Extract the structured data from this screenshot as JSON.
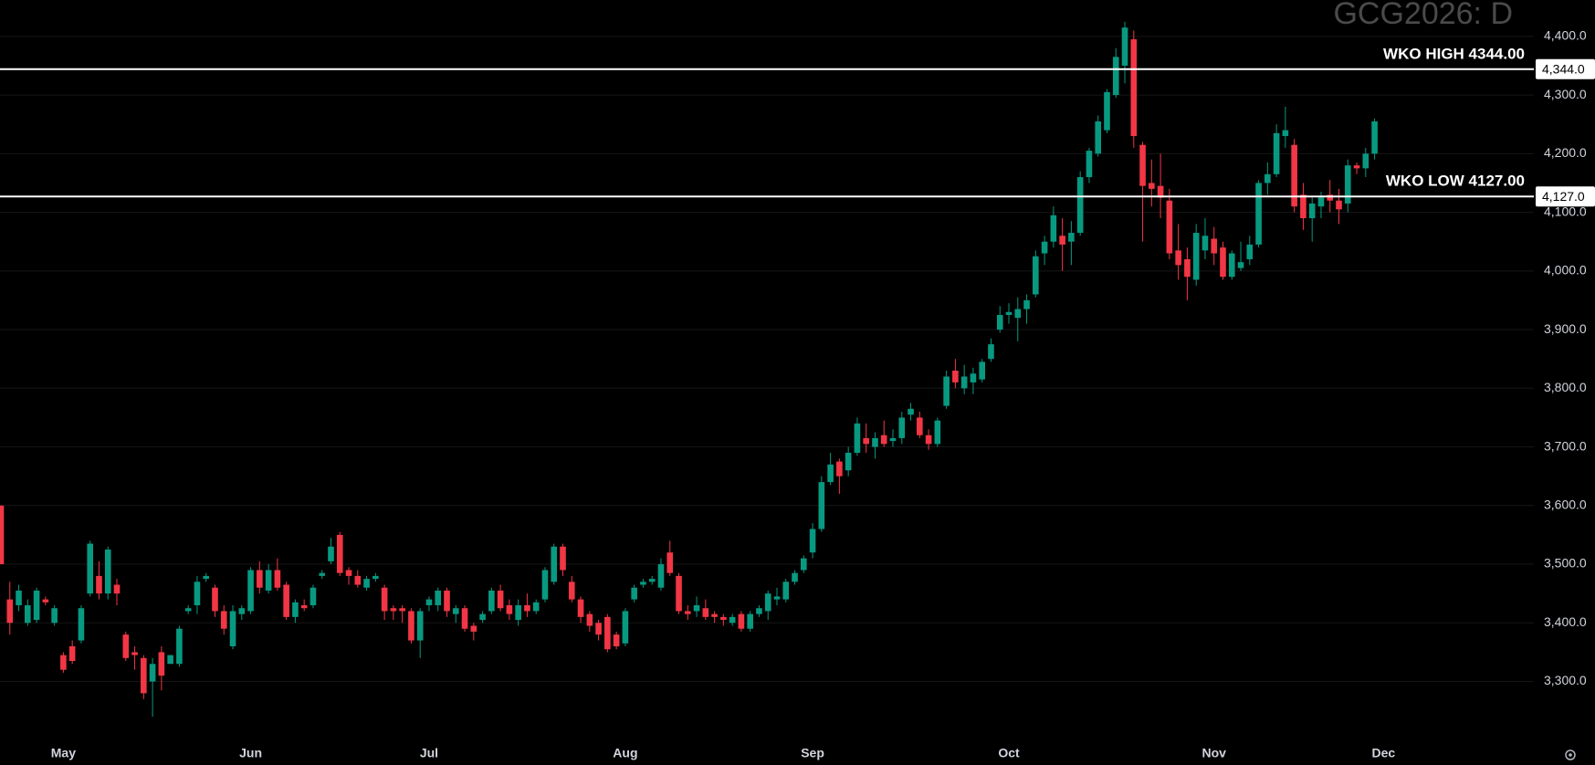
{
  "chart_data": {
    "type": "candlestick",
    "title": "GCG2026: D",
    "up_color": "#089981",
    "down_color": "#f23645",
    "categories": [
      null,
      null,
      null,
      null,
      null,
      null,
      null,
      "May",
      null,
      null,
      null,
      null,
      null,
      null,
      null,
      null,
      null,
      null,
      null,
      null,
      null,
      null,
      null,
      null,
      null,
      null,
      null,
      null,
      "Jun",
      null,
      null,
      null,
      null,
      null,
      null,
      null,
      null,
      null,
      null,
      null,
      null,
      null,
      null,
      null,
      null,
      null,
      null,
      null,
      "Jul",
      null,
      null,
      null,
      null,
      null,
      null,
      null,
      null,
      null,
      null,
      null,
      null,
      null,
      null,
      null,
      null,
      null,
      null,
      null,
      null,
      null,
      "Aug",
      null,
      null,
      null,
      null,
      null,
      null,
      null,
      null,
      null,
      null,
      null,
      null,
      null,
      null,
      null,
      null,
      null,
      null,
      null,
      null,
      "Sep",
      null,
      null,
      null,
      null,
      null,
      null,
      null,
      null,
      null,
      null,
      null,
      null,
      null,
      null,
      null,
      null,
      null,
      null,
      null,
      null,
      null,
      "Oct",
      null,
      null,
      null,
      null,
      null,
      null,
      null,
      null,
      null,
      null,
      null,
      null,
      null,
      null,
      null,
      null,
      null,
      null,
      null,
      null,
      null,
      null,
      "Nov",
      null,
      null,
      null,
      null,
      null,
      null,
      null,
      null,
      null,
      null,
      null,
      null,
      null,
      null,
      null,
      null,
      null,
      null,
      "Dec"
    ],
    "open": [
      3600,
      3440,
      3430,
      3400,
      3405,
      3440,
      3400,
      3345,
      3360,
      3370,
      3450,
      3480,
      3450,
      3465,
      3380,
      3350,
      3340,
      3300,
      3350,
      3330,
      3330,
      3420,
      3430,
      3475,
      3460,
      3420,
      3360,
      3415,
      3420,
      3490,
      3455,
      3490,
      3465,
      3410,
      3430,
      3430,
      3480,
      3505,
      3550,
      3490,
      3480,
      3460,
      3475,
      3460,
      3425,
      3425,
      3420,
      3370,
      3430,
      3430,
      3455,
      3415,
      3425,
      3395,
      3405,
      3420,
      3455,
      3430,
      3405,
      3430,
      3420,
      3440,
      3470,
      3530,
      3470,
      3440,
      3415,
      3400,
      3410,
      3380,
      3365,
      3440,
      3465,
      3470,
      3460,
      3520,
      3480,
      3420,
      3420,
      3425,
      3415,
      3410,
      3400,
      3415,
      3390,
      3415,
      3420,
      3440,
      3440,
      3470,
      3490,
      3520,
      3560,
      3640,
      3675,
      3660,
      3690,
      3715,
      3700,
      3720,
      3710,
      3715,
      3755,
      3750,
      3720,
      3705,
      3770,
      3830,
      3800,
      3810,
      3815,
      3850,
      3900,
      3925,
      3920,
      3935,
      3960,
      4030,
      4050,
      4060,
      4050,
      4065,
      4160,
      4200,
      4240,
      4300,
      4350,
      4395,
      4215,
      4150,
      4145,
      4120,
      4035,
      4020,
      3985,
      4035,
      4055,
      4040,
      3990,
      4005,
      4020,
      4045,
      4150,
      4165,
      4230,
      4215,
      4130,
      4090,
      4110,
      4130,
      4120,
      4115,
      4180,
      4175,
      4200,
      null
    ],
    "high": [
      3600,
      3470,
      3465,
      3440,
      3460,
      3445,
      3430,
      3350,
      3370,
      3430,
      3540,
      3505,
      3530,
      3475,
      3385,
      3360,
      3345,
      3340,
      3360,
      3345,
      3395,
      3430,
      3480,
      3485,
      3465,
      3430,
      3430,
      3430,
      3495,
      3505,
      3500,
      3510,
      3470,
      3440,
      3440,
      3465,
      3490,
      3545,
      3555,
      3495,
      3490,
      3480,
      3485,
      3465,
      3430,
      3430,
      3425,
      3425,
      3445,
      3460,
      3460,
      3430,
      3430,
      3400,
      3420,
      3460,
      3465,
      3440,
      3440,
      3450,
      3440,
      3495,
      3535,
      3535,
      3480,
      3445,
      3420,
      3405,
      3415,
      3385,
      3425,
      3465,
      3475,
      3480,
      3510,
      3540,
      3485,
      3430,
      3445,
      3440,
      3420,
      3415,
      3415,
      3420,
      3420,
      3430,
      3455,
      3460,
      3475,
      3490,
      3515,
      3570,
      3650,
      3690,
      3680,
      3700,
      3750,
      3740,
      3725,
      3745,
      3730,
      3760,
      3775,
      3760,
      3730,
      3750,
      3830,
      3850,
      3840,
      3835,
      3850,
      3885,
      3940,
      3945,
      3955,
      3960,
      4035,
      4060,
      4110,
      4090,
      4085,
      4170,
      4210,
      4265,
      4310,
      4380,
      4425,
      4410,
      4220,
      4190,
      4200,
      4140,
      4080,
      4040,
      4080,
      4090,
      4075,
      4050,
      4035,
      4050,
      4060,
      4155,
      4185,
      4250,
      4280,
      4225,
      4150,
      4125,
      4135,
      4155,
      4140,
      4190,
      4185,
      4210,
      4260,
      null
    ],
    "low": [
      3500,
      3380,
      3420,
      3395,
      3400,
      3430,
      3395,
      3315,
      3330,
      3365,
      3445,
      3440,
      3440,
      3430,
      3335,
      3320,
      3270,
      3240,
      3285,
      3330,
      3325,
      3415,
      3415,
      3470,
      3410,
      3380,
      3355,
      3405,
      3415,
      3450,
      3450,
      3455,
      3405,
      3400,
      3420,
      3425,
      3475,
      3500,
      3480,
      3465,
      3460,
      3455,
      3470,
      3405,
      3405,
      3400,
      3365,
      3340,
      3420,
      3420,
      3410,
      3400,
      3385,
      3370,
      3400,
      3415,
      3420,
      3405,
      3395,
      3410,
      3415,
      3435,
      3465,
      3480,
      3435,
      3400,
      3385,
      3370,
      3350,
      3355,
      3360,
      3435,
      3460,
      3465,
      3455,
      3480,
      3415,
      3405,
      3410,
      3405,
      3400,
      3395,
      3395,
      3385,
      3385,
      3410,
      3405,
      3430,
      3435,
      3465,
      3485,
      3510,
      3555,
      3635,
      3620,
      3650,
      3685,
      3690,
      3680,
      3700,
      3700,
      3705,
      3745,
      3715,
      3695,
      3700,
      3765,
      3800,
      3790,
      3790,
      3810,
      3845,
      3895,
      3910,
      3880,
      3910,
      3955,
      4010,
      4040,
      4000,
      4010,
      4060,
      4150,
      4195,
      4235,
      4295,
      4320,
      4210,
      4050,
      4110,
      4090,
      4020,
      3985,
      3950,
      3975,
      4020,
      4010,
      3985,
      3985,
      4000,
      4010,
      4040,
      4130,
      4160,
      4210,
      4100,
      4070,
      4050,
      4090,
      4100,
      4080,
      4100,
      4165,
      4160,
      4190,
      null
    ],
    "close": [
      3500,
      3400,
      3455,
      3430,
      3455,
      3435,
      3425,
      3320,
      3335,
      3425,
      3535,
      3450,
      3525,
      3450,
      3340,
      3345,
      3280,
      3330,
      3310,
      3345,
      3390,
      3425,
      3470,
      3480,
      3420,
      3390,
      3420,
      3425,
      3490,
      3460,
      3490,
      3460,
      3410,
      3435,
      3425,
      3460,
      3485,
      3530,
      3485,
      3480,
      3465,
      3475,
      3480,
      3420,
      3420,
      3420,
      3370,
      3420,
      3440,
      3455,
      3420,
      3425,
      3390,
      3385,
      3415,
      3455,
      3425,
      3415,
      3430,
      3420,
      3435,
      3490,
      3530,
      3490,
      3440,
      3410,
      3395,
      3380,
      3355,
      3360,
      3420,
      3460,
      3470,
      3475,
      3500,
      3485,
      3420,
      3415,
      3430,
      3410,
      3410,
      3405,
      3410,
      3390,
      3415,
      3425,
      3450,
      3445,
      3470,
      3485,
      3510,
      3560,
      3640,
      3670,
      3650,
      3690,
      3740,
      3705,
      3715,
      3705,
      3715,
      3750,
      3765,
      3720,
      3705,
      3745,
      3820,
      3810,
      3820,
      3825,
      3845,
      3875,
      3925,
      3930,
      3935,
      3950,
      4025,
      4050,
      4095,
      4045,
      4065,
      4160,
      4205,
      4255,
      4305,
      4365,
      4415,
      4230,
      4145,
      4140,
      4125,
      4030,
      4010,
      3990,
      4065,
      4060,
      4030,
      3990,
      4030,
      4015,
      4045,
      4150,
      4165,
      4235,
      4240,
      4110,
      4090,
      4115,
      4125,
      4120,
      4105,
      4180,
      4175,
      4200,
      4255,
      null
    ],
    "ylim": [
      3209,
      4462
    ],
    "yticks": [
      {
        "value": 3300,
        "label": "3,300.0"
      },
      {
        "value": 3400,
        "label": "3,400.0"
      },
      {
        "value": 3500,
        "label": "3,500.0"
      },
      {
        "value": 3600,
        "label": "3,600.0"
      },
      {
        "value": 3700,
        "label": "3,700.0"
      },
      {
        "value": 3800,
        "label": "3,800.0"
      },
      {
        "value": 3900,
        "label": "3,900.0"
      },
      {
        "value": 4000,
        "label": "4,000.0"
      },
      {
        "value": 4100,
        "label": "4,100.0"
      },
      {
        "value": 4200,
        "label": "4,200.0"
      },
      {
        "value": 4300,
        "label": "4,300.0"
      },
      {
        "value": 4400,
        "label": "4,400.0"
      }
    ],
    "grid": true,
    "hlines": [
      {
        "text": "WKO HIGH 4344.00",
        "value": 4344,
        "label": "4,344.0"
      },
      {
        "text": "WKO LOW 4127.00",
        "value": 4127,
        "label": "4,127.0"
      }
    ]
  }
}
